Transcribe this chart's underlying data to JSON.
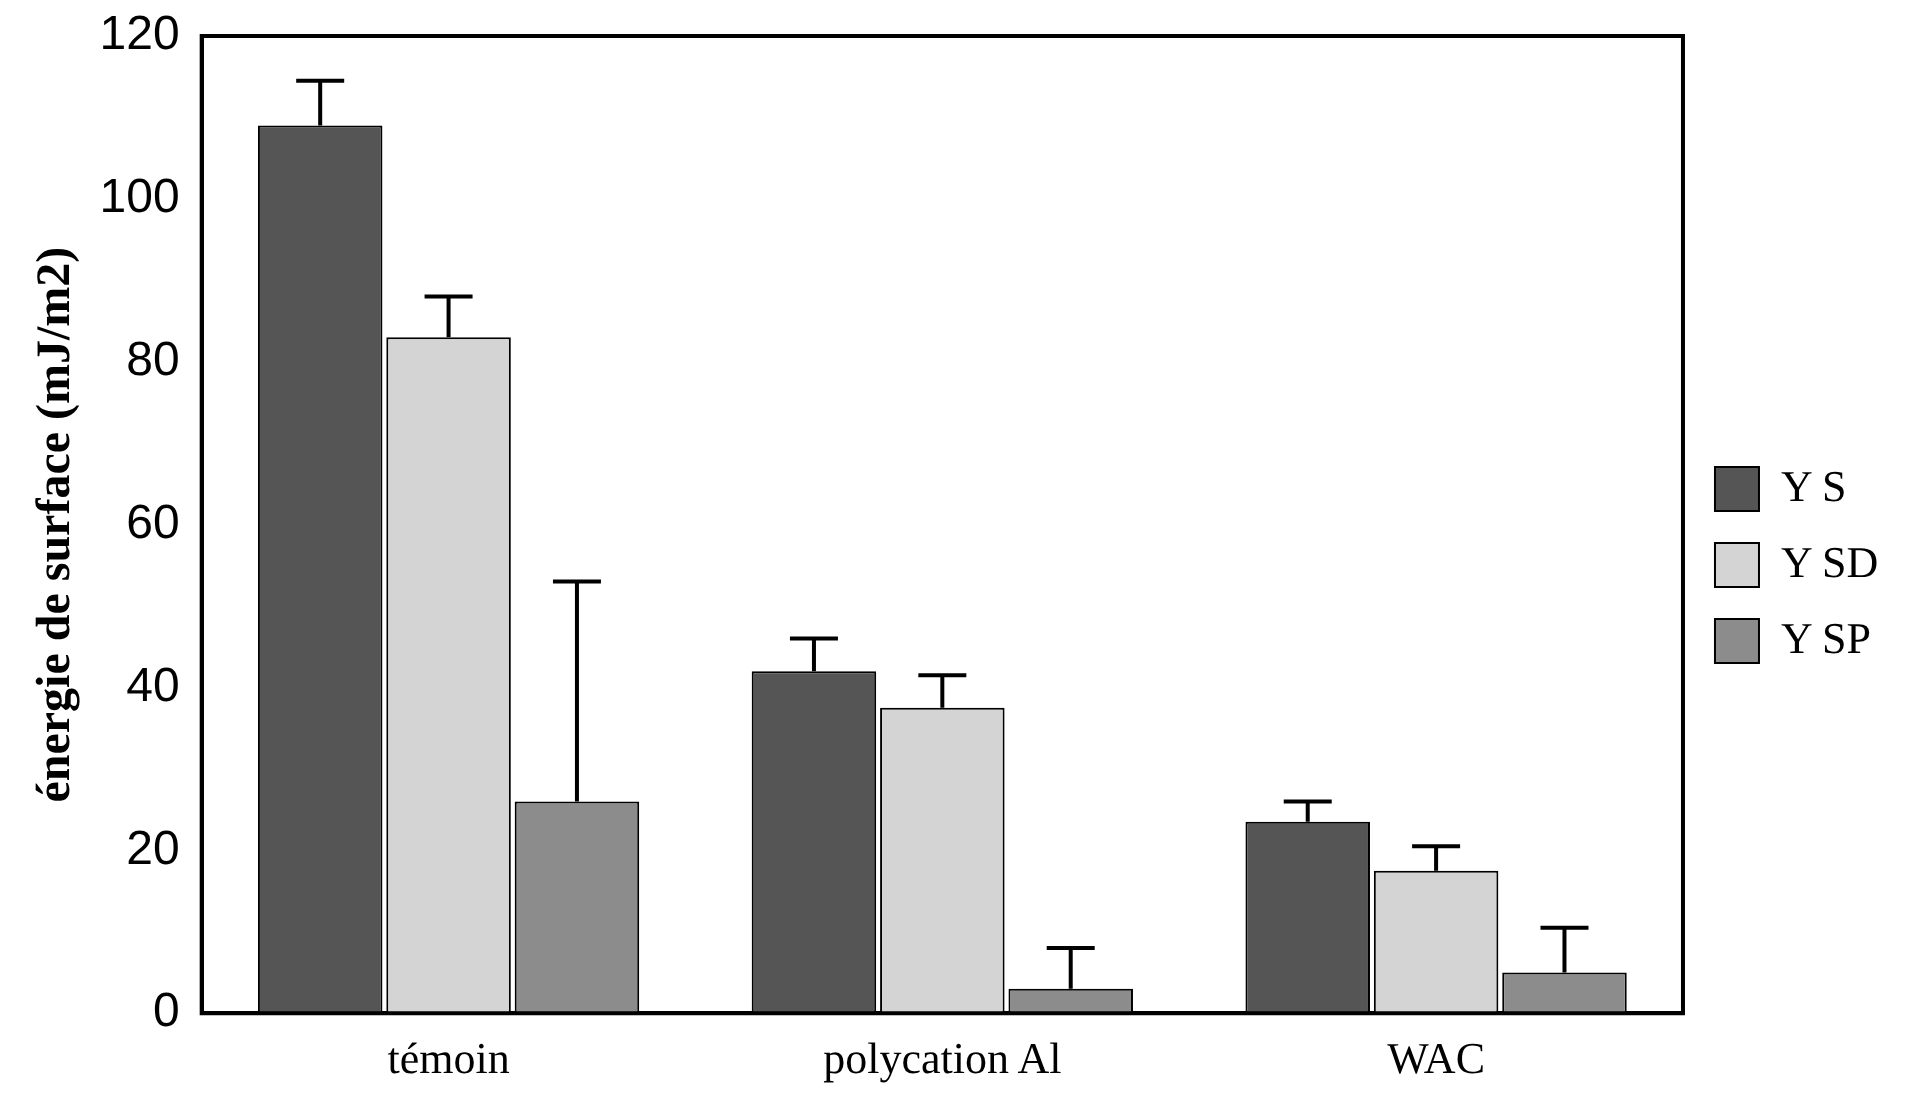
{
  "chart_data": {
    "type": "bar",
    "ylabel": "énergie de surface (mJ/m2)",
    "categories": [
      "témoin",
      "polycation Al",
      "WAC"
    ],
    "series": [
      {
        "name": "Y S",
        "color": "#555555",
        "values": [
          109,
          42,
          23.5
        ],
        "errors": [
          [
            109,
            114.5
          ],
          [
            42,
            46
          ],
          [
            23.5,
            26
          ]
        ]
      },
      {
        "name": "Y SD",
        "color": "#d4d4d4",
        "values": [
          83,
          37.5,
          17.5
        ],
        "errors": [
          [
            83,
            88
          ],
          [
            37.5,
            41.5
          ],
          [
            17.5,
            20.5
          ]
        ]
      },
      {
        "name": "Y SP",
        "color": "#8c8c8c",
        "values": [
          26,
          3,
          5
        ],
        "errors": [
          [
            26,
            53
          ],
          [
            3,
            8
          ],
          [
            5,
            10.5
          ]
        ]
      }
    ],
    "ylim": [
      0,
      120
    ],
    "yticks": [
      0,
      20,
      40,
      60,
      80,
      100,
      120
    ],
    "grid": false,
    "legend": "right"
  }
}
